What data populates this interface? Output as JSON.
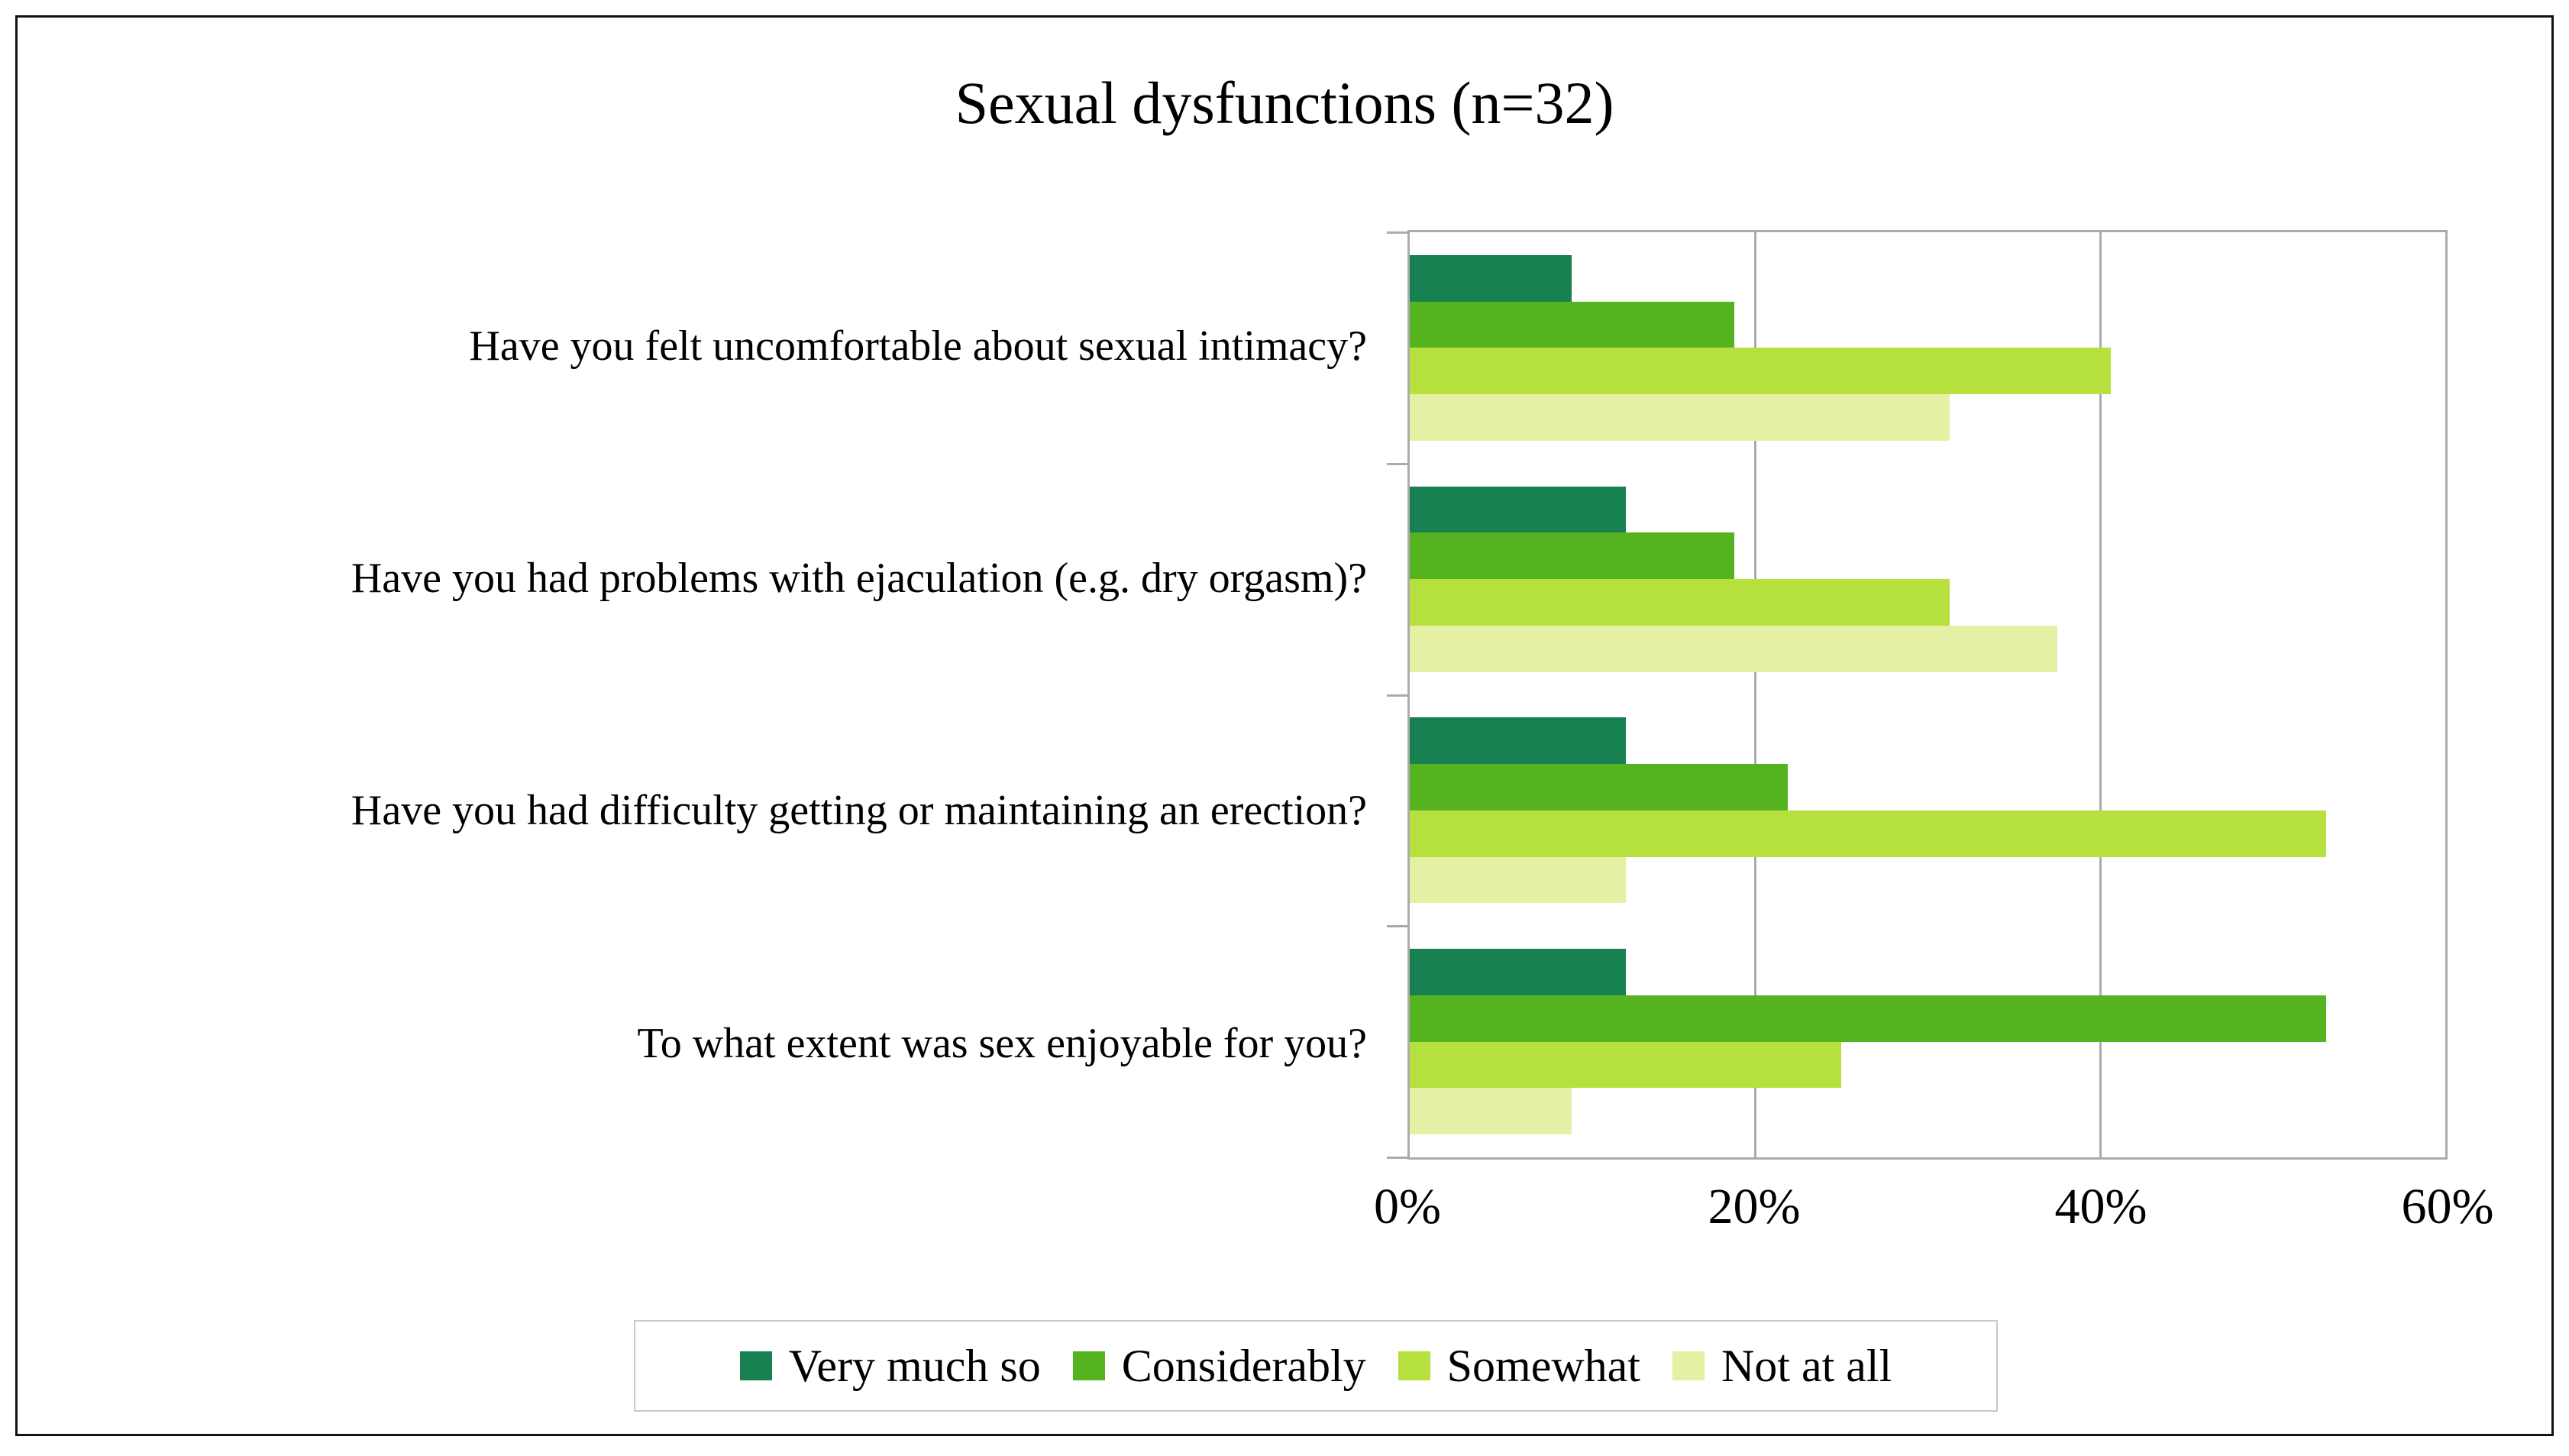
{
  "chart_data": {
    "type": "bar",
    "orientation": "horizontal",
    "title": "Sexual dysfunctions (n=32)",
    "categories": [
      "Have you felt uncomfortable about sexual intimacy?",
      "Have you had problems with ejaculation (e.g. dry orgasm)?",
      "Have you had difficulty getting or maintaining an erection?",
      "To what extent was sex enjoyable for you?"
    ],
    "series": [
      {
        "name": "Very much so",
        "color": "#178152",
        "values": [
          9.4,
          12.5,
          12.5,
          12.5
        ]
      },
      {
        "name": "Considerably",
        "color": "#56B320",
        "values": [
          18.8,
          18.8,
          21.9,
          53.1
        ]
      },
      {
        "name": "Somewhat",
        "color": "#B6E03E",
        "values": [
          40.6,
          31.3,
          53.1,
          25.0
        ]
      },
      {
        "name": "Not at all",
        "color": "#E6F0A4",
        "values": [
          31.3,
          37.5,
          12.5,
          9.4
        ]
      }
    ],
    "x_axis": {
      "tick_labels": [
        "0%",
        "20%",
        "40%",
        "60%"
      ],
      "min": 0,
      "max": 60
    },
    "grid": true,
    "legend_position": "bottom"
  },
  "style_colors": {
    "grid_and_axis": "#ABABAB",
    "legend_border": "#C9C9C9",
    "outer_border": "#111111",
    "text": "#000000",
    "background": "#FFFFFF"
  }
}
